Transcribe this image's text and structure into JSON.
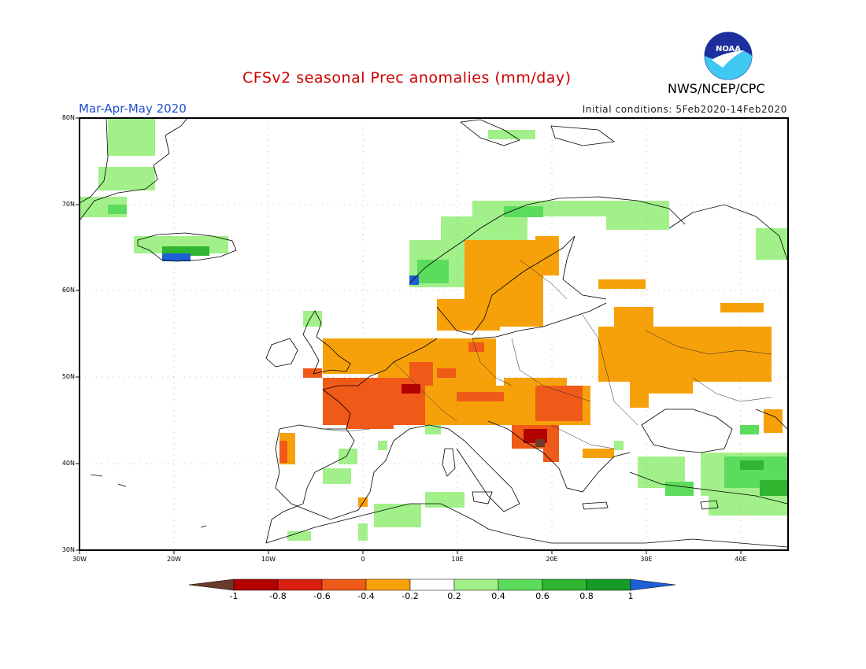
{
  "header": {
    "title": "CFSv2 seasonal Prec anomalies (mm/day)",
    "agency": "NWS/NCEP/CPC",
    "period": "Mar-Apr-May 2020",
    "initial_conditions": "Initial conditions: 5Feb2020-14Feb2020",
    "logo_text": "NOAA"
  },
  "map": {
    "lat_labels": [
      "80N",
      "70N",
      "60N",
      "50N",
      "40N",
      "30N"
    ],
    "lon_labels": [
      "30W",
      "20W",
      "10W",
      "0",
      "10E",
      "20E",
      "30E",
      "40E"
    ]
  },
  "colorbar": {
    "labels": [
      "-1",
      "-0.8",
      "-0.6",
      "-0.4",
      "-0.2",
      "0.2",
      "0.4",
      "0.6",
      "0.8",
      "1"
    ],
    "colors": [
      "#6b3a2a",
      "#b30000",
      "#d92010",
      "#f05a18",
      "#f7a10a",
      "#ffffff",
      "#a2f08a",
      "#5cdc5c",
      "#2fb52f",
      "#169b28",
      "#1f5fd6"
    ]
  }
}
